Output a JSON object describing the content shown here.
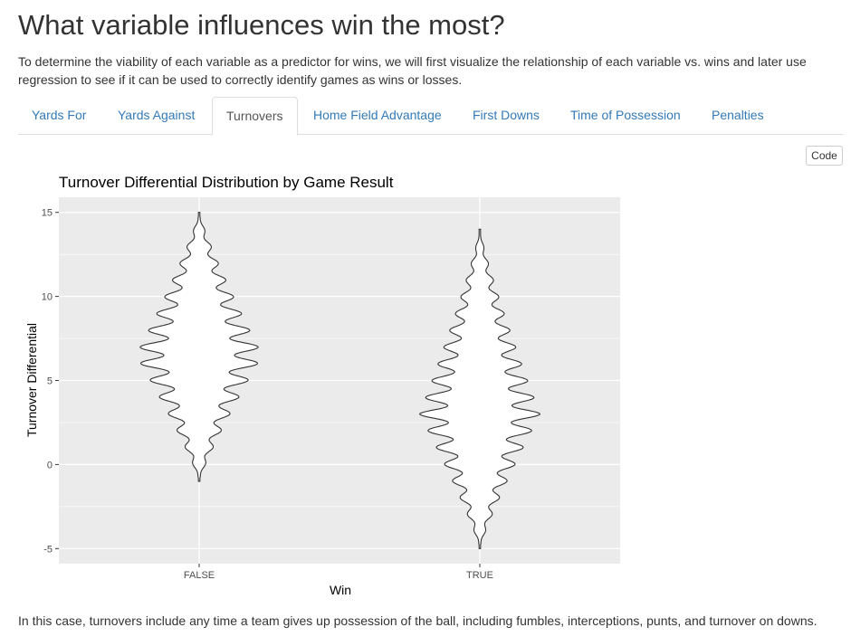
{
  "header": {
    "title": "What variable influences win the most?",
    "intro": "To determine the viability of each variable as a predictor for wins, we will first visualize the relationship of each variable vs. wins and later use regression to see if it can be used to correctly identify games as wins or losses."
  },
  "tabs": [
    {
      "label": "Yards For",
      "active": false
    },
    {
      "label": "Yards Against",
      "active": false
    },
    {
      "label": "Turnovers",
      "active": true
    },
    {
      "label": "Home Field Advantage",
      "active": false
    },
    {
      "label": "First Downs",
      "active": false
    },
    {
      "label": "Time of Possession",
      "active": false
    },
    {
      "label": "Penalties",
      "active": false
    }
  ],
  "code_button": {
    "label": "Code"
  },
  "chart_data": {
    "type": "violin",
    "title": "Turnover Differential Distribution by Game Result",
    "xlabel": "Win",
    "ylabel": "Turnover Differential",
    "categories": [
      "FALSE",
      "TRUE"
    ],
    "yticks": [
      -5,
      0,
      5,
      10,
      15
    ],
    "ylim": [
      -5.9,
      15.9
    ],
    "grid": true,
    "background": "#ebebeb",
    "gridline_color": "#ffffff",
    "outline_color": "#333333",
    "fill_color": "#ffffff",
    "series": [
      {
        "category": "FALSE",
        "min": -1,
        "max": 15,
        "density_peaks": [
          1,
          2,
          3,
          4,
          5,
          6,
          7,
          8,
          9,
          10,
          11,
          12,
          13
        ],
        "max_halfwidth_fraction": 0.45,
        "center_y": 6.5
      },
      {
        "category": "TRUE",
        "min": -5,
        "max": 14,
        "density_peaks": [
          -1,
          0,
          1,
          2,
          3,
          4,
          5,
          6,
          7,
          8,
          9,
          10
        ],
        "max_halfwidth_fraction": 0.43,
        "center_y": 3
      }
    ]
  },
  "footer": {
    "note": "In this case, turnovers include any time a team gives up possession of the ball, including fumbles, interceptions, punts, and turnover on downs."
  }
}
